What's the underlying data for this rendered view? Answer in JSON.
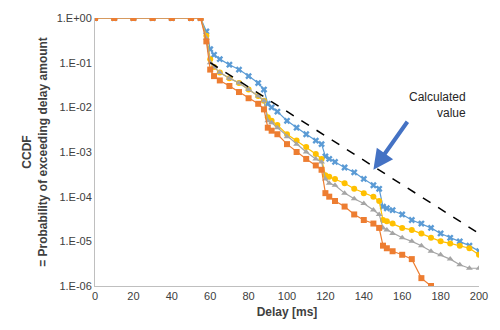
{
  "chart_data": {
    "type": "scatter",
    "x_title": "Delay [ms]",
    "y_title": "CCDF\n= Probability of exceeding delay amount",
    "log": "y",
    "grid": false,
    "xlim": [
      0,
      200
    ],
    "xticks": [
      0,
      20,
      40,
      60,
      80,
      100,
      120,
      140,
      160,
      180,
      200
    ],
    "ylim": [
      1e-06,
      1
    ],
    "yticks": [
      {
        "value": 1,
        "label": "1.E+00"
      },
      {
        "value": 0.1,
        "label": "1.E-01"
      },
      {
        "value": 0.01,
        "label": "1.E-02"
      },
      {
        "value": 0.001,
        "label": "1.E-03"
      },
      {
        "value": 0.0001,
        "label": "1.E-04"
      },
      {
        "value": 1e-05,
        "label": "1.E-05"
      },
      {
        "value": 1e-06,
        "label": "1.E-06"
      }
    ],
    "x": [
      0,
      10,
      20,
      30,
      40,
      50,
      55,
      58,
      60,
      62,
      65,
      70,
      75,
      80,
      85,
      88,
      90,
      92,
      95,
      100,
      105,
      110,
      115,
      118,
      120,
      122,
      125,
      130,
      135,
      140,
      145,
      148,
      150,
      152,
      155,
      160,
      165,
      170,
      175,
      180,
      185,
      190,
      195,
      200
    ],
    "series": [
      {
        "color": "#5b9bd5",
        "marker": "x",
        "values": [
          1,
          1,
          1,
          1,
          1,
          1,
          1,
          0.5,
          0.2,
          0.15,
          0.12,
          0.09,
          0.07,
          0.05,
          0.035,
          0.025,
          0.012,
          0.01,
          0.008,
          0.005,
          0.0035,
          0.0025,
          0.0018,
          0.0015,
          0.0008,
          0.0007,
          0.0006,
          0.00045,
          0.00035,
          0.00025,
          0.00018,
          0.00015,
          6e-05,
          5.5e-05,
          5e-05,
          4e-05,
          3e-05,
          2.5e-05,
          2e-05,
          1.5e-05,
          1.2e-05,
          1e-05,
          8e-06,
          6e-06
        ]
      },
      {
        "color": "#ffc000",
        "marker": "circle",
        "values": [
          1,
          1,
          1,
          1,
          1,
          1,
          1,
          0.4,
          0.12,
          0.08,
          0.06,
          0.045,
          0.035,
          0.025,
          0.018,
          0.014,
          0.006,
          0.005,
          0.004,
          0.0025,
          0.0018,
          0.0013,
          0.0009,
          0.0007,
          0.0003,
          0.00028,
          0.00025,
          0.0002,
          0.00015,
          0.00012,
          0.0001,
          8e-05,
          3e-05,
          2.8e-05,
          2.5e-05,
          2e-05,
          1.8e-05,
          1.5e-05,
          1.2e-05,
          1e-05,
          9e-06,
          8e-06,
          7e-06,
          5e-06
        ]
      },
      {
        "color": "#a5a5a5",
        "marker": "triangle-up",
        "values": [
          1,
          1,
          1,
          1,
          1,
          1,
          1,
          0.35,
          0.1,
          0.08,
          0.06,
          0.045,
          0.035,
          0.025,
          0.018,
          0.014,
          0.005,
          0.0045,
          0.0035,
          0.0022,
          0.0015,
          0.001,
          0.0007,
          0.0006,
          0.00025,
          0.0002,
          0.00018,
          0.00012,
          9e-05,
          7e-05,
          5e-05,
          4e-05,
          2e-05,
          1.8e-05,
          1.5e-05,
          1.2e-05,
          1e-05,
          8e-06,
          6e-06,
          5e-06,
          4e-06,
          3e-06,
          2.5e-06,
          2.5e-06
        ]
      },
      {
        "color": "#ed7d31",
        "marker": "square",
        "values": [
          1,
          1,
          1,
          1,
          1,
          1,
          1,
          0.3,
          0.07,
          0.05,
          0.04,
          0.03,
          0.022,
          0.016,
          0.012,
          0.009,
          0.0035,
          0.003,
          0.0025,
          0.0015,
          0.001,
          0.0007,
          0.0005,
          0.0004,
          0.00012,
          0.0001,
          8e-05,
          6e-05,
          4e-05,
          3e-05,
          2.5e-05,
          2e-05,
          8e-06,
          7e-06,
          6e-06,
          5e-06,
          4e-06,
          1.5e-06,
          1e-06,
          null,
          null,
          null,
          null,
          null
        ]
      },
      {
        "type": "line",
        "color": "#000000",
        "line_style": "dashed",
        "x": [
          60,
          200
        ],
        "values": [
          0.1,
          1.5e-05
        ]
      }
    ],
    "annotations": [
      {
        "text": "Calculated value",
        "x": 145,
        "y": 0.0004,
        "color": "#4472c4"
      }
    ]
  }
}
